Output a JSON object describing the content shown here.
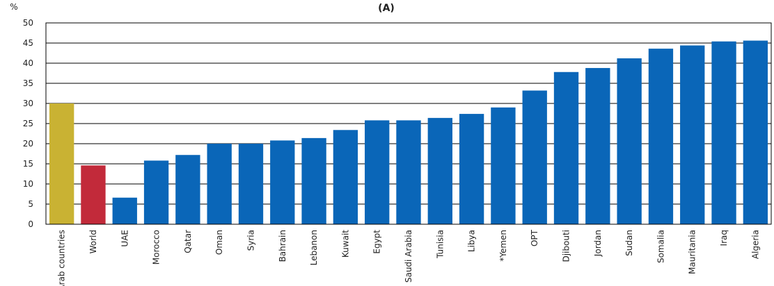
{
  "chart_data": {
    "type": "bar",
    "title": "(A)",
    "ylabel": "%",
    "xlabel": "",
    "ylim": [
      0,
      50
    ],
    "yticks": [
      0,
      5,
      10,
      15,
      20,
      25,
      30,
      35,
      40,
      45,
      50
    ],
    "grid": "horizontal",
    "categories": [
      "Arab countries",
      "World",
      "UAE",
      "Morocco",
      "Qatar",
      "Oman",
      "Syria",
      "Bahrain",
      "Lebanon",
      "Kuwait",
      "Egypt",
      "Saudi Arabia",
      "Tunisia",
      "Libya",
      "*Yemen",
      "OPT",
      "Djibouti",
      "Jordan",
      "Sudan",
      "Somalia",
      "Mauritania",
      "Iraq",
      "Algeria"
    ],
    "values": [
      30.0,
      14.6,
      6.6,
      15.8,
      17.2,
      20.0,
      20.0,
      20.8,
      21.4,
      23.4,
      25.8,
      25.8,
      26.4,
      27.4,
      29.0,
      33.2,
      37.8,
      38.8,
      41.2,
      43.6,
      44.4,
      45.4,
      45.6
    ],
    "colors": [
      "#c9b233",
      "#c22a3a",
      "#0a66b8",
      "#0a66b8",
      "#0a66b8",
      "#0a66b8",
      "#0a66b8",
      "#0a66b8",
      "#0a66b8",
      "#0a66b8",
      "#0a66b8",
      "#0a66b8",
      "#0a66b8",
      "#0a66b8",
      "#0a66b8",
      "#0a66b8",
      "#0a66b8",
      "#0a66b8",
      "#0a66b8",
      "#0a66b8",
      "#0a66b8",
      "#0a66b8",
      "#0a66b8"
    ]
  }
}
